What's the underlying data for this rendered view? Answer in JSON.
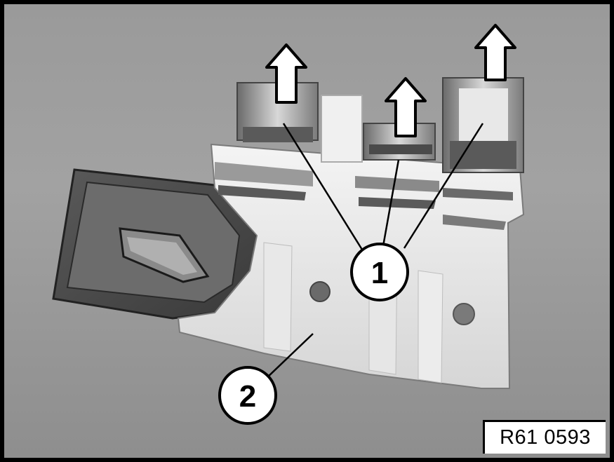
{
  "callouts": [
    {
      "number": "1"
    },
    {
      "number": "2"
    }
  ],
  "reference_code": "R61 0593"
}
